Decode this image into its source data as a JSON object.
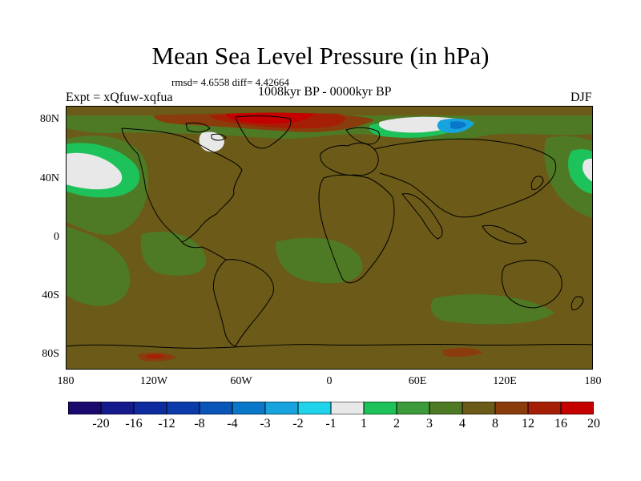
{
  "title": "Mean Sea Level Pressure (in hPa)",
  "stats": "rmsd= 4.6558 diff= 4.42664",
  "experiment": "Expt = xQfuw-xqfua",
  "period": "1008kyr BP - 0000kyr BP",
  "season": "DJF",
  "lat_labels": [
    "80N",
    "40N",
    "0",
    "40S",
    "80S"
  ],
  "lon_labels": [
    "180",
    "120W",
    "60W",
    "0",
    "60E",
    "120E",
    "180"
  ],
  "colorbar": {
    "labels": [
      "-20",
      "-16",
      "-12",
      "-8",
      "-4",
      "-3",
      "-2",
      "-1",
      "1",
      "2",
      "3",
      "4",
      "8",
      "12",
      "16",
      "20"
    ],
    "colors": [
      "#1a0a6e",
      "#141a8c",
      "#0d2a9e",
      "#0b3aaa",
      "#0a55b8",
      "#0a78c8",
      "#17a3de",
      "#1fd3ea",
      "#e8e8e8",
      "#1ec25a",
      "#3c9a3a",
      "#4f7a25",
      "#6b5a18",
      "#8a3c0c",
      "#a51f06",
      "#c40000"
    ]
  },
  "field_colors": {
    "background": "#6b5a18",
    "green_dark": "#4f7a25",
    "green": "#3c9a3a",
    "green_light": "#1ec25a",
    "white": "#e8e8e8",
    "blue_light": "#17a3de",
    "blue": "#0a78c8",
    "orange": "#8a3c0c",
    "red": "#a51f06",
    "red_bright": "#c40000"
  }
}
